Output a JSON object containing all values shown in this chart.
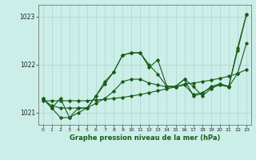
{
  "background_color": "#cceee8",
  "grid_color": "#aad4cc",
  "line_color": "#1a5c1a",
  "xlabel": "Graphe pression niveau de la mer (hPa)",
  "ylim": [
    1020.75,
    1023.25
  ],
  "xlim": [
    -0.5,
    23.5
  ],
  "yticks": [
    1021,
    1022,
    1023
  ],
  "xticks": [
    0,
    1,
    2,
    3,
    4,
    5,
    6,
    7,
    8,
    9,
    10,
    11,
    12,
    13,
    14,
    15,
    16,
    17,
    18,
    19,
    20,
    21,
    22,
    23
  ],
  "series": [
    [
      1021.3,
      1021.1,
      1021.3,
      1020.9,
      1021.1,
      1021.1,
      1021.35,
      1021.65,
      1021.85,
      1022.2,
      1022.25,
      1022.25,
      1021.95,
      1022.1,
      1021.55,
      1021.55,
      1021.7,
      1021.55,
      1021.35,
      1021.5,
      1021.6,
      1021.55,
      1022.35,
      1023.05
    ],
    [
      1021.25,
      1021.25,
      1021.25,
      1021.25,
      1021.25,
      1021.25,
      1021.27,
      1021.28,
      1021.3,
      1021.32,
      1021.35,
      1021.38,
      1021.42,
      1021.46,
      1021.5,
      1021.54,
      1021.6,
      1021.62,
      1021.65,
      1021.68,
      1021.72,
      1021.76,
      1021.82,
      1021.9
    ],
    [
      1021.3,
      1021.1,
      1020.9,
      1020.9,
      1021.0,
      1021.1,
      1021.35,
      1021.6,
      1021.85,
      1022.2,
      1022.25,
      1022.25,
      1022.0,
      1021.8,
      1021.55,
      1021.55,
      1021.7,
      1021.35,
      1021.4,
      1021.55,
      1021.6,
      1021.55,
      1022.3,
      1023.05
    ],
    [
      1021.28,
      1021.15,
      1021.1,
      1021.1,
      1021.1,
      1021.1,
      1021.2,
      1021.3,
      1021.45,
      1021.65,
      1021.7,
      1021.7,
      1021.62,
      1021.58,
      1021.54,
      1021.54,
      1021.58,
      1021.38,
      1021.42,
      1021.52,
      1021.58,
      1021.54,
      1021.82,
      1022.45
    ]
  ]
}
